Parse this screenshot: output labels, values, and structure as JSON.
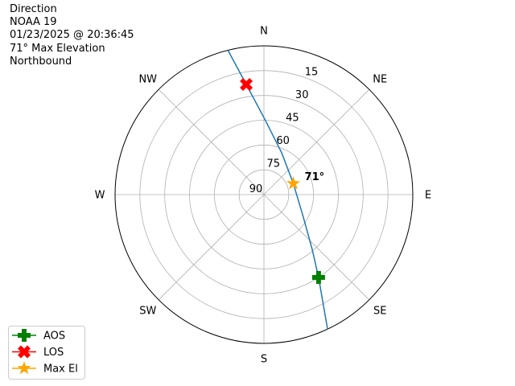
{
  "title_lines": [
    "Direction",
    "NOAA 19",
    "01/23/2025 @ 20:36:45",
    "71° Max Elevation",
    "Northbound"
  ],
  "chart_data": {
    "type": "polar-line",
    "theta_direction": "clockwise",
    "theta_zero": "north",
    "r_axis": "elevation (90 at center, 0 at edge)",
    "rlim": [
      90,
      0
    ],
    "r_ticks": [
      90,
      75,
      60,
      45,
      30,
      15
    ],
    "r_tick_labels": [
      "90",
      "75",
      "60",
      "45",
      "30",
      "15"
    ],
    "theta_ticks": [
      0,
      45,
      90,
      135,
      180,
      225,
      270,
      315
    ],
    "theta_tick_labels": [
      "N",
      "NE",
      "E",
      "SE",
      "S",
      "SW",
      "W",
      "NW"
    ],
    "grid": true,
    "track": {
      "color": "#1f77b4",
      "points": [
        [
          346,
          0
        ],
        [
          350.9,
          22.5
        ],
        [
          1.2,
          45.2
        ],
        [
          22.9,
          62.5
        ],
        [
          69.3,
          71
        ],
        [
          119.7,
          62.6
        ],
        [
          138.6,
          45.9
        ],
        [
          146.6,
          30
        ],
        [
          154.7,
          0
        ]
      ]
    },
    "markers": [
      {
        "name": "AOS",
        "az": 146.6,
        "el": 30,
        "color": "#008000",
        "symbol": "plus"
      },
      {
        "name": "LOS",
        "az": 350.9,
        "el": 22.5,
        "color": "#ff0000",
        "symbol": "x"
      },
      {
        "name": "Max El",
        "az": 69.3,
        "el": 71,
        "color": "#ffa500",
        "symbol": "star"
      }
    ],
    "annotation": {
      "text": "71°",
      "az": 69.3,
      "el": 71
    },
    "legend_placement": "lower-left"
  }
}
